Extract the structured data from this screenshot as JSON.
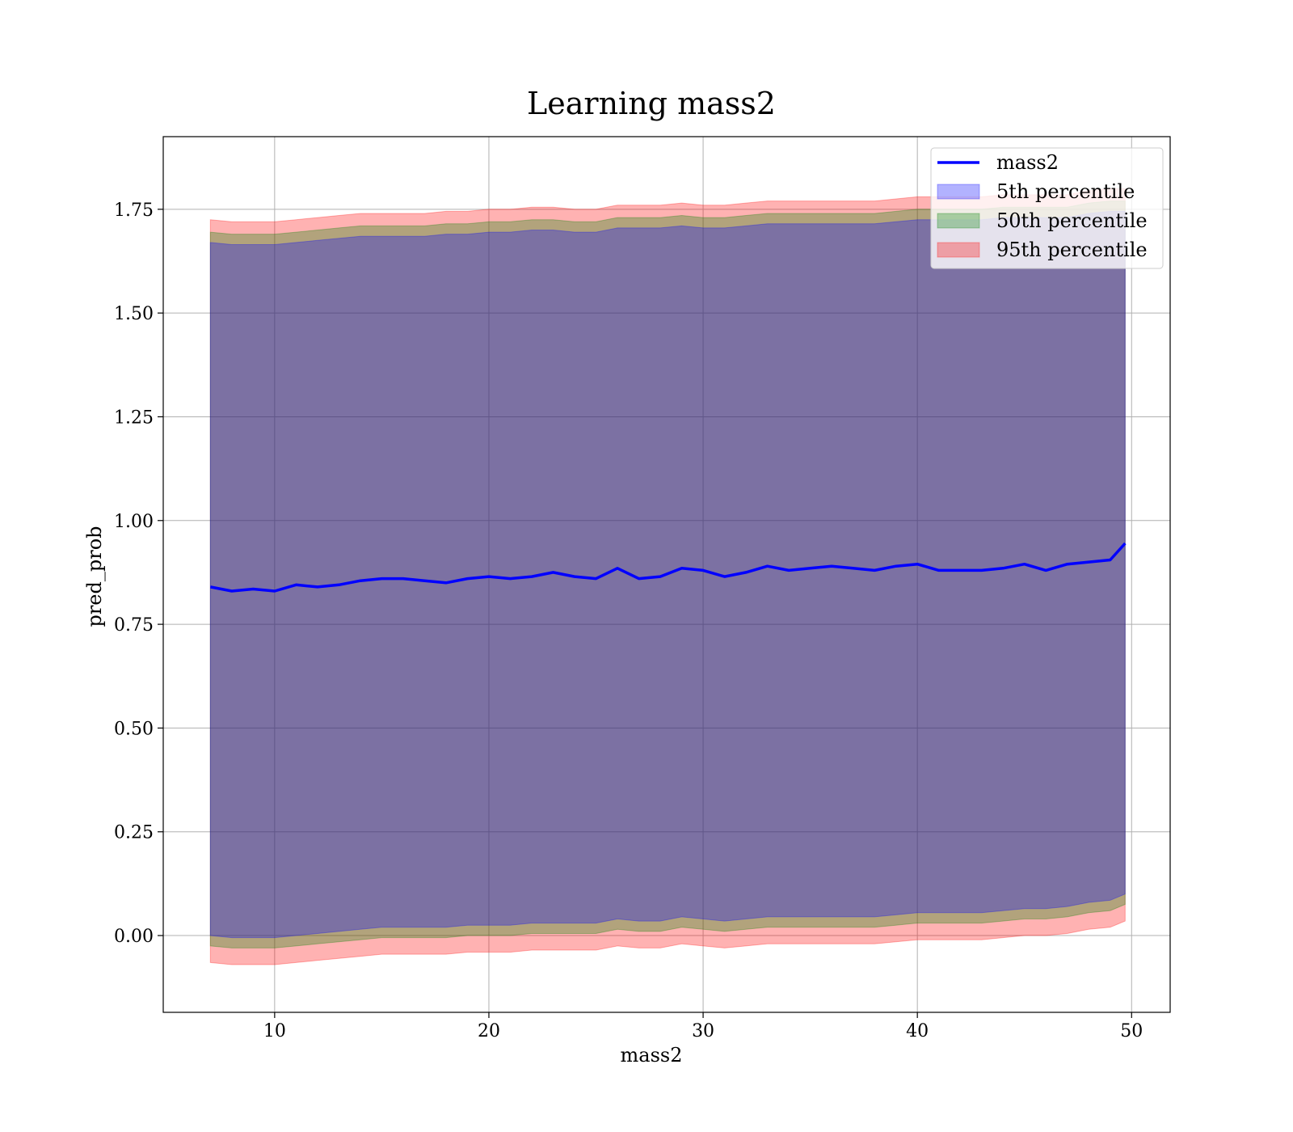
{
  "chart_data": {
    "type": "line",
    "title": "Learning mass2",
    "xlabel": "mass2",
    "ylabel": "pred_prob",
    "xlim": [
      4.8,
      51.8
    ],
    "ylim": [
      -0.185,
      1.925
    ],
    "x_ticks": [
      10,
      20,
      30,
      40,
      50
    ],
    "x_tick_labels": [
      "10",
      "20",
      "30",
      "40",
      "50"
    ],
    "y_ticks": [
      0.0,
      0.25,
      0.5,
      0.75,
      1.0,
      1.25,
      1.5,
      1.75
    ],
    "y_tick_labels": [
      "0.00",
      "0.25",
      "0.50",
      "0.75",
      "1.00",
      "1.25",
      "1.50",
      "1.75"
    ],
    "grid": true,
    "legend_position": "top-right",
    "x": [
      7,
      8,
      9,
      10,
      11,
      12,
      13,
      14,
      15,
      16,
      17,
      18,
      19,
      20,
      21,
      22,
      23,
      24,
      25,
      26,
      27,
      28,
      29,
      30,
      31,
      32,
      33,
      34,
      35,
      36,
      37,
      38,
      39,
      40,
      41,
      42,
      43,
      44,
      45,
      46,
      47,
      48,
      49,
      49.7
    ],
    "series": [
      {
        "name": "mass2",
        "kind": "line",
        "color": "#0000ff",
        "values": [
          0.84,
          0.83,
          0.835,
          0.83,
          0.845,
          0.84,
          0.845,
          0.855,
          0.86,
          0.86,
          0.855,
          0.85,
          0.86,
          0.865,
          0.86,
          0.865,
          0.875,
          0.865,
          0.86,
          0.885,
          0.86,
          0.865,
          0.885,
          0.88,
          0.865,
          0.875,
          0.89,
          0.88,
          0.885,
          0.89,
          0.885,
          0.88,
          0.89,
          0.895,
          0.88,
          0.88,
          0.88,
          0.885,
          0.895,
          0.88,
          0.895,
          0.9,
          0.905,
          0.945
        ]
      },
      {
        "name": "5th percentile",
        "kind": "band",
        "color": "#0000ff",
        "upper": [
          1.67,
          1.665,
          1.665,
          1.665,
          1.67,
          1.675,
          1.68,
          1.685,
          1.685,
          1.685,
          1.685,
          1.69,
          1.69,
          1.695,
          1.695,
          1.7,
          1.7,
          1.695,
          1.695,
          1.705,
          1.705,
          1.705,
          1.71,
          1.705,
          1.705,
          1.71,
          1.715,
          1.715,
          1.715,
          1.715,
          1.715,
          1.715,
          1.72,
          1.725,
          1.725,
          1.725,
          1.725,
          1.73,
          1.73,
          1.73,
          1.73,
          1.74,
          1.745,
          1.745
        ],
        "lower": [
          0.0,
          -0.005,
          -0.005,
          -0.005,
          0.0,
          0.005,
          0.01,
          0.015,
          0.02,
          0.02,
          0.02,
          0.02,
          0.025,
          0.025,
          0.025,
          0.03,
          0.03,
          0.03,
          0.03,
          0.04,
          0.035,
          0.035,
          0.045,
          0.04,
          0.035,
          0.04,
          0.045,
          0.045,
          0.045,
          0.045,
          0.045,
          0.045,
          0.05,
          0.055,
          0.055,
          0.055,
          0.055,
          0.06,
          0.065,
          0.065,
          0.07,
          0.08,
          0.085,
          0.1
        ]
      },
      {
        "name": "50th percentile",
        "kind": "band",
        "color": "#008000",
        "upper": [
          1.695,
          1.69,
          1.69,
          1.69,
          1.695,
          1.7,
          1.705,
          1.71,
          1.71,
          1.71,
          1.71,
          1.715,
          1.715,
          1.72,
          1.72,
          1.725,
          1.725,
          1.72,
          1.72,
          1.73,
          1.73,
          1.73,
          1.735,
          1.73,
          1.73,
          1.735,
          1.74,
          1.74,
          1.74,
          1.74,
          1.74,
          1.74,
          1.745,
          1.75,
          1.75,
          1.75,
          1.75,
          1.755,
          1.755,
          1.755,
          1.755,
          1.765,
          1.77,
          1.77
        ],
        "lower": [
          -0.025,
          -0.03,
          -0.03,
          -0.03,
          -0.025,
          -0.02,
          -0.015,
          -0.01,
          -0.005,
          -0.005,
          -0.005,
          -0.005,
          0.0,
          0.0,
          0.0,
          0.005,
          0.005,
          0.005,
          0.005,
          0.015,
          0.01,
          0.01,
          0.02,
          0.015,
          0.01,
          0.015,
          0.02,
          0.02,
          0.02,
          0.02,
          0.02,
          0.02,
          0.025,
          0.03,
          0.03,
          0.03,
          0.03,
          0.035,
          0.04,
          0.04,
          0.045,
          0.055,
          0.06,
          0.075
        ]
      },
      {
        "name": "95th percentile",
        "kind": "band",
        "color": "#ff0000",
        "upper": [
          1.725,
          1.72,
          1.72,
          1.72,
          1.725,
          1.73,
          1.735,
          1.74,
          1.74,
          1.74,
          1.74,
          1.745,
          1.745,
          1.75,
          1.75,
          1.755,
          1.755,
          1.75,
          1.75,
          1.76,
          1.76,
          1.76,
          1.765,
          1.76,
          1.76,
          1.765,
          1.77,
          1.77,
          1.77,
          1.77,
          1.77,
          1.77,
          1.775,
          1.78,
          1.78,
          1.78,
          1.78,
          1.785,
          1.785,
          1.785,
          1.785,
          1.795,
          1.8,
          1.8
        ],
        "lower": [
          -0.065,
          -0.07,
          -0.07,
          -0.07,
          -0.065,
          -0.06,
          -0.055,
          -0.05,
          -0.045,
          -0.045,
          -0.045,
          -0.045,
          -0.04,
          -0.04,
          -0.04,
          -0.035,
          -0.035,
          -0.035,
          -0.035,
          -0.025,
          -0.03,
          -0.03,
          -0.02,
          -0.025,
          -0.03,
          -0.025,
          -0.02,
          -0.02,
          -0.02,
          -0.02,
          -0.02,
          -0.02,
          -0.015,
          -0.01,
          -0.01,
          -0.01,
          -0.01,
          -0.005,
          0.0,
          0.0,
          0.005,
          0.015,
          0.02,
          0.035
        ]
      }
    ]
  }
}
